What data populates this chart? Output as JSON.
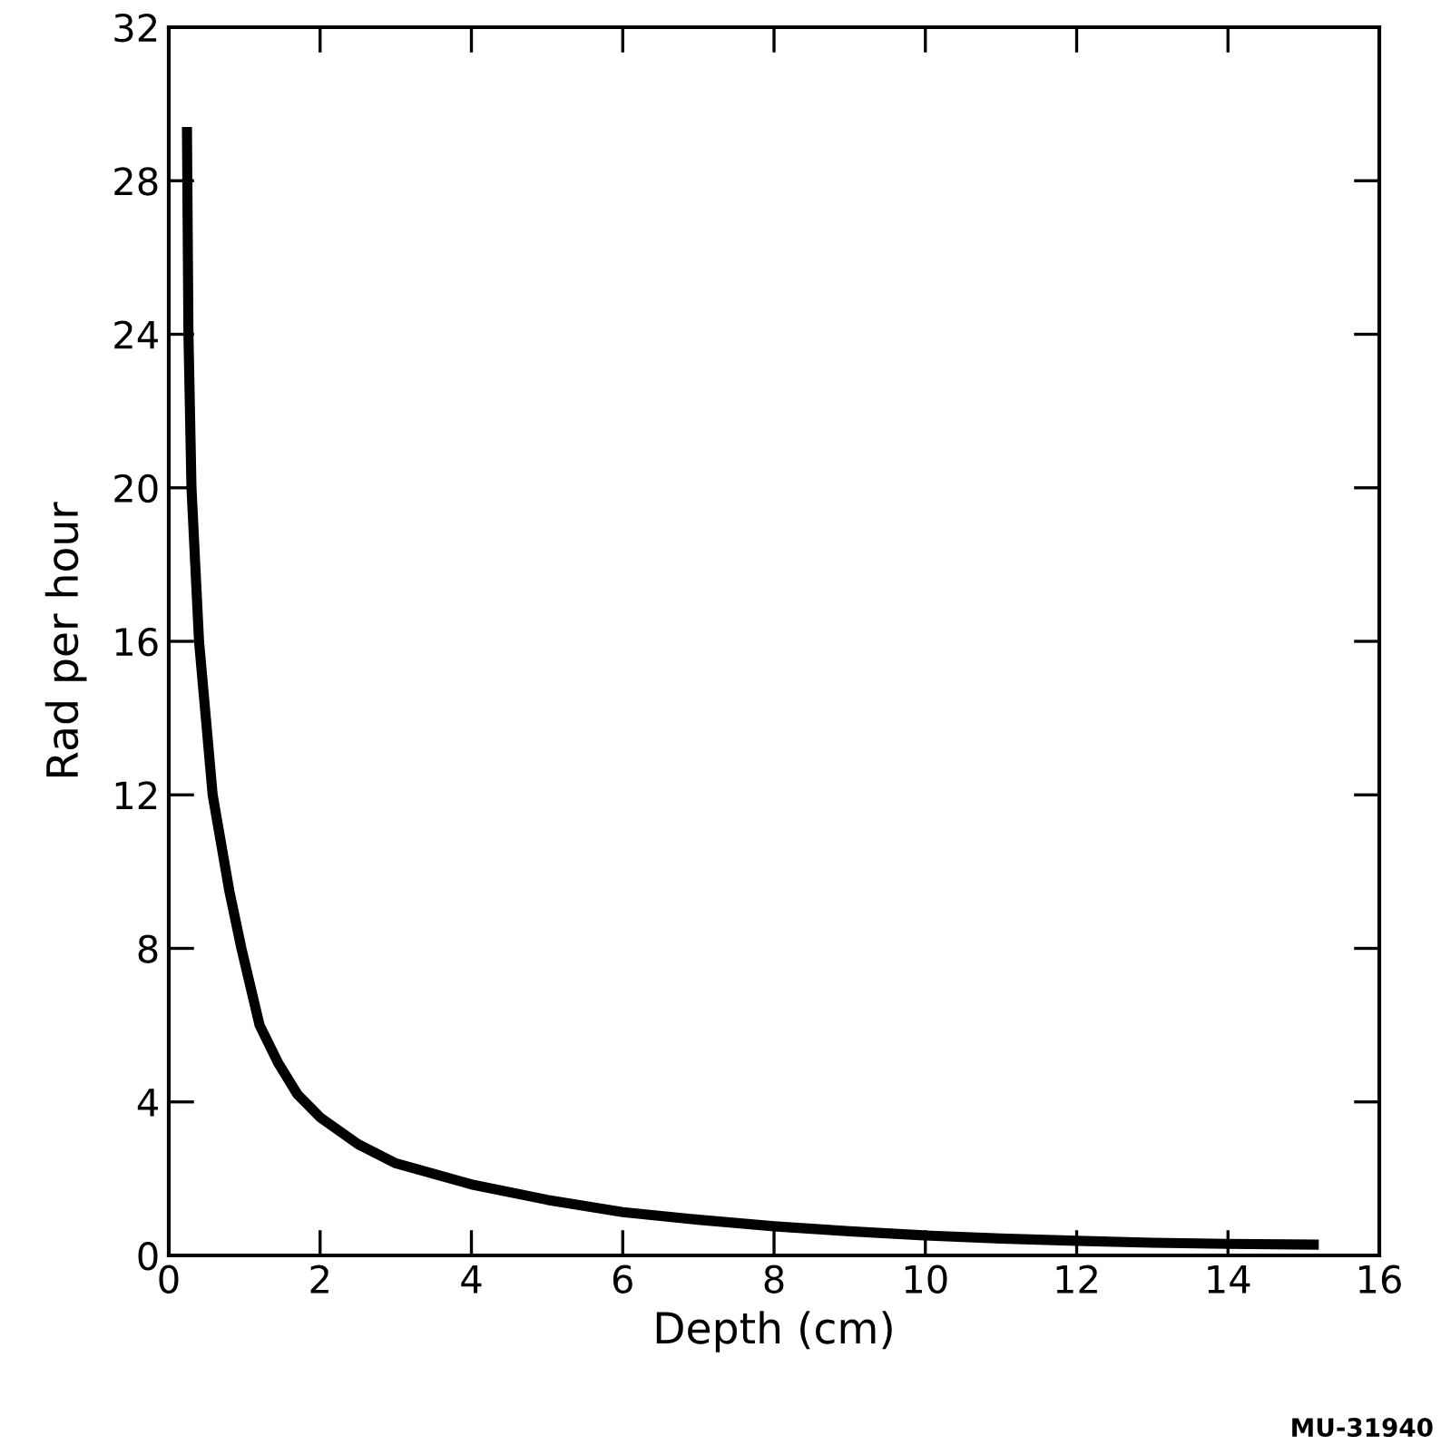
{
  "chart_data": {
    "type": "line",
    "xlabel": "Depth (cm)",
    "ylabel": "Rad per hour",
    "x": [
      0.24,
      0.26,
      0.3,
      0.4,
      0.58,
      0.8,
      0.96,
      1.2,
      1.45,
      1.7,
      2,
      2.5,
      3,
      4,
      5,
      6,
      7,
      8,
      9,
      10,
      11,
      12,
      13,
      14,
      15.2
    ],
    "series": [
      {
        "color": "#000000",
        "values": [
          29.4,
          24,
          20,
          16,
          12,
          9.5,
          8,
          6,
          5,
          4.2,
          3.6,
          2.9,
          2.4,
          1.85,
          1.45,
          1.13,
          0.93,
          0.76,
          0.63,
          0.52,
          0.44,
          0.38,
          0.33,
          0.3,
          0.28
        ]
      }
    ],
    "xlim": [
      0,
      16
    ],
    "xticks": [
      0,
      2,
      4,
      6,
      8,
      10,
      12,
      14,
      16
    ],
    "ylim": [
      0,
      32
    ],
    "yticks": [
      0,
      4,
      8,
      12,
      16,
      20,
      24,
      28,
      32
    ],
    "grid": false,
    "marker": "none",
    "line_style": "solid",
    "annotations": [
      "MU-31940"
    ]
  }
}
